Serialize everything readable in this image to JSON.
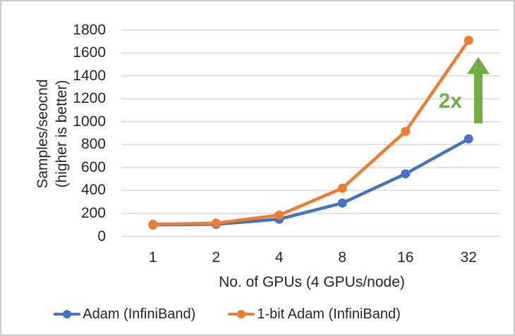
{
  "chart_data": {
    "type": "line",
    "categories": [
      "1",
      "2",
      "4",
      "8",
      "16",
      "32"
    ],
    "series": [
      {
        "name": "Adam (InfiniBand)",
        "color": "#4472C4",
        "values": [
          100,
          105,
          150,
          290,
          545,
          850
        ]
      },
      {
        "name": "1-bit Adam (InfiniBand)",
        "color": "#ED7D31",
        "values": [
          105,
          115,
          185,
          420,
          915,
          1710
        ]
      }
    ],
    "xlabel": "No. of GPUs (4 GPUs/node)",
    "ylabel_line1": "Samples/seocnd",
    "ylabel_line2": "(higher is better)",
    "ylim": [
      0,
      1800
    ],
    "yticks": [
      0,
      200,
      400,
      600,
      800,
      1000,
      1200,
      1400,
      1600,
      1800
    ],
    "grid": "horizontal",
    "legend_position": "bottom",
    "annotation": {
      "label": "2x",
      "color": "#70AD47",
      "shape": "up-arrow"
    }
  },
  "colors": {
    "grid": "#D9D9D9",
    "text": "#262626",
    "frame_border": "#C9C9C9",
    "background": "#FFFFFF"
  }
}
